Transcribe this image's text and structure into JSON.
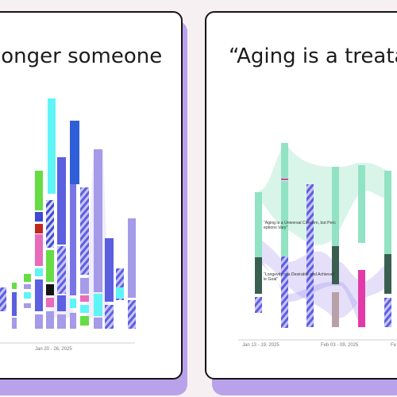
{
  "cards": [
    {
      "title": "longer someone",
      "axis_labels": [
        "Jan 20 - 26, 2025"
      ]
    },
    {
      "title": "“Aging is a treata",
      "axis_labels": [
        "Jan 13 - 19, 2025",
        "Feb 03 - 09, 2025",
        "Fe"
      ],
      "annotations": [
        "“Aging is a Universal Concern, but Perc eptions Vary”",
        "“Longevity is a Desirable and Achievab le Goal”"
      ]
    }
  ],
  "colors": {
    "background": "#f6f0f2",
    "shadow": "#b9a2ea",
    "cyan": "#5ff5f7",
    "blue": "#2f5fd8",
    "indigo": "#5b5fe0",
    "lavender": "#a59be8",
    "green": "#66dd44",
    "pink": "#e86bbb",
    "mint": "#92e2c4",
    "dark_green": "#3a5f50",
    "magenta": "#e23aa8"
  }
}
